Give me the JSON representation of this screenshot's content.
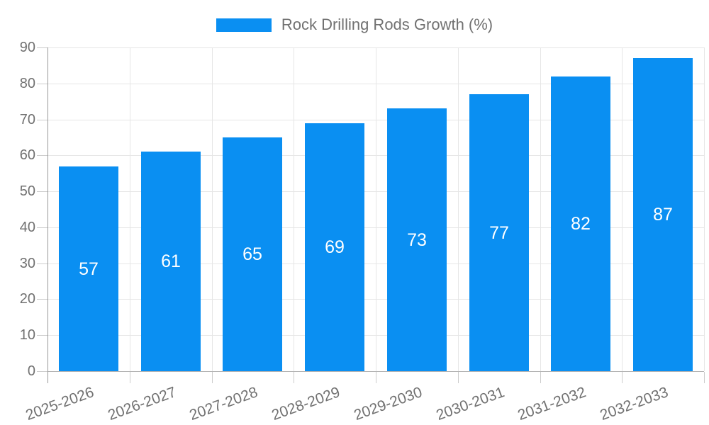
{
  "legend": {
    "label": "Rock Drilling Rods Growth (%)"
  },
  "chart_data": {
    "type": "bar",
    "title": "Rock Drilling Rods Growth (%)",
    "categories": [
      "2025-2026",
      "2026-2027",
      "2027-2028",
      "2028-2029",
      "2029-2030",
      "2030-2031",
      "2031-2032",
      "2032-2033"
    ],
    "values": [
      57,
      61,
      65,
      69,
      73,
      77,
      82,
      87
    ],
    "value_labels": [
      "57",
      "61",
      "65",
      "69",
      "73",
      "77",
      "82",
      "87"
    ],
    "xlabel": "",
    "ylabel": "",
    "ylim": [
      0,
      90
    ],
    "ytick_step": 10,
    "yticks": [
      "0",
      "10",
      "20",
      "30",
      "40",
      "50",
      "60",
      "70",
      "80",
      "90"
    ],
    "grid": true,
    "legend_position": "top-center",
    "colors": {
      "bar": "#0a8ff2",
      "label_text": "#717171",
      "value_text": "#ffffff",
      "grid_line": "#e6e6e6",
      "y_axis_line": "#999999",
      "x_baseline": "#b3b3b3",
      "tick": "#cccccc",
      "background": "#ffffff"
    }
  }
}
